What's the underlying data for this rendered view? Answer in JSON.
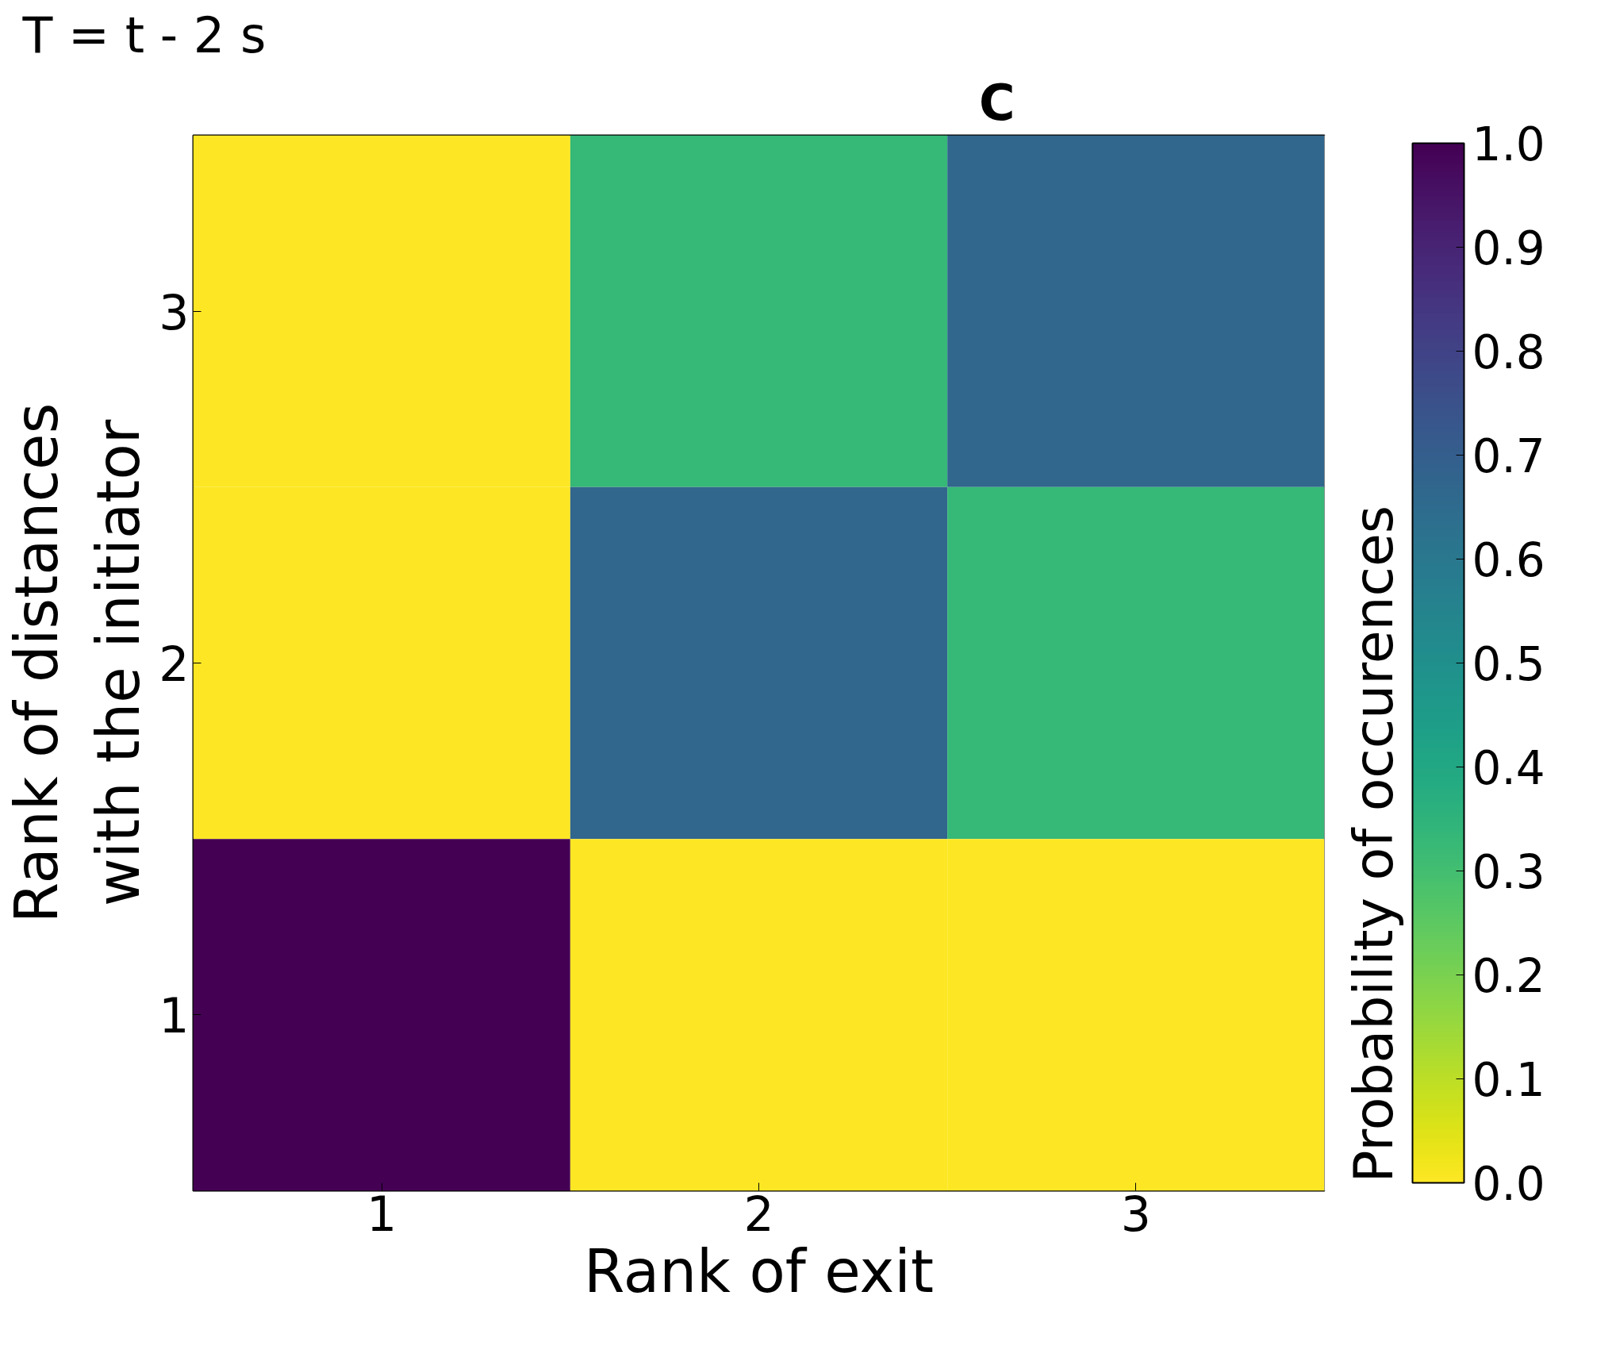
{
  "chart_data": {
    "type": "heatmap",
    "title": "T = t - 2 s",
    "annotations": [
      "C"
    ],
    "xlabel": "Rank of exit",
    "ylabel": "Rank of distances\nwith the initiator",
    "clabel": "Probability of occurences",
    "categories": [
      "1",
      "2",
      "3"
    ],
    "y_categories": [
      "3",
      "2",
      "1"
    ],
    "cells": [
      [
        0.0,
        0.33,
        0.67
      ],
      [
        0.0,
        0.67,
        0.33
      ],
      [
        1.0,
        0.0,
        0.0
      ]
    ],
    "clim": [
      0,
      1
    ],
    "cticks": [
      {
        "value": 0,
        "label": "0.0"
      },
      {
        "value": 0.1,
        "label": "0.1"
      },
      {
        "value": 0.2,
        "label": "0.2"
      },
      {
        "value": 0.3,
        "label": "0.3"
      },
      {
        "value": 0.4,
        "label": "0.4"
      },
      {
        "value": 0.5,
        "label": "0.5"
      },
      {
        "value": 0.6,
        "label": "0.6"
      },
      {
        "value": 0.7,
        "label": "0.7"
      },
      {
        "value": 0.8,
        "label": "0.8"
      },
      {
        "value": 0.9,
        "label": "0.9"
      },
      {
        "value": 1,
        "label": "1.0"
      }
    ]
  }
}
